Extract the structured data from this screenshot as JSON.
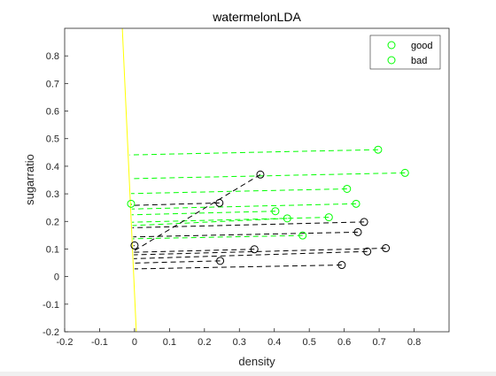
{
  "chart_data": {
    "type": "scatter",
    "title": "watermelonLDA",
    "xlabel": "density",
    "ylabel": "sugarratio",
    "xlim": [
      -0.2,
      0.9
    ],
    "ylim": [
      -0.2,
      0.9
    ],
    "xticks": [
      "-0.2",
      "-0.1",
      "0",
      "0.1",
      "0.2",
      "0.3",
      "0.4",
      "0.5",
      "0.6",
      "0.7",
      "0.8"
    ],
    "yticks": [
      "-0.2",
      "-0.1",
      "0",
      "0.1",
      "0.2",
      "0.3",
      "0.4",
      "0.5",
      "0.6",
      "0.7",
      "0.8"
    ],
    "grid": false,
    "legend_position": "top-right",
    "colors": {
      "good": "#00ff00",
      "bad": "#000000",
      "lda_line": "#ffff00"
    },
    "lda_line": {
      "x": [
        -0.035,
        0.005
      ],
      "y": [
        0.9,
        -0.2
      ]
    },
    "series": [
      {
        "name": "good",
        "color": "#00ff00",
        "points": [
          {
            "x": 0.697,
            "y": 0.46,
            "px": -0.014,
            "py": 0.441
          },
          {
            "x": 0.774,
            "y": 0.376,
            "px": -0.011,
            "py": 0.355
          },
          {
            "x": 0.608,
            "y": 0.318,
            "px": -0.01,
            "py": 0.301
          },
          {
            "x": 0.634,
            "y": 0.264,
            "px": -0.008,
            "py": 0.245
          },
          {
            "x": 0.556,
            "y": 0.215,
            "px": -0.007,
            "py": 0.197
          },
          {
            "x": 0.403,
            "y": 0.237,
            "px": -0.008,
            "py": 0.224
          },
          {
            "x": 0.481,
            "y": 0.149,
            "px": -0.005,
            "py": 0.137
          },
          {
            "x": 0.437,
            "y": 0.211,
            "px": -0.006,
            "py": 0.185
          },
          {
            "x": -0.01,
            "y": 0.264,
            "px": -0.008,
            "py": 0.26
          }
        ]
      },
      {
        "name": "bad",
        "color": "#000000",
        "points": [
          {
            "x": 0.666,
            "y": 0.091,
            "px": -0.002,
            "py": 0.065
          },
          {
            "x": 0.243,
            "y": 0.267,
            "px": -0.008,
            "py": 0.258
          },
          {
            "x": 0.245,
            "y": 0.057,
            "px": -0.001,
            "py": 0.049
          },
          {
            "x": 0.343,
            "y": 0.099,
            "px": -0.003,
            "py": 0.088
          },
          {
            "x": 0.639,
            "y": 0.161,
            "px": -0.004,
            "py": 0.144
          },
          {
            "x": 0.657,
            "y": 0.198,
            "px": -0.006,
            "py": 0.177
          },
          {
            "x": 0.36,
            "y": 0.37,
            "px": -0.003,
            "py": 0.092
          },
          {
            "x": 0.593,
            "y": 0.042,
            "px": 0.0,
            "py": 0.028
          },
          {
            "x": 0.719,
            "y": 0.103,
            "px": -0.002,
            "py": 0.079
          },
          {
            "x": 0.0,
            "y": 0.113,
            "px": -0.003,
            "py": 0.111
          }
        ]
      }
    ]
  }
}
